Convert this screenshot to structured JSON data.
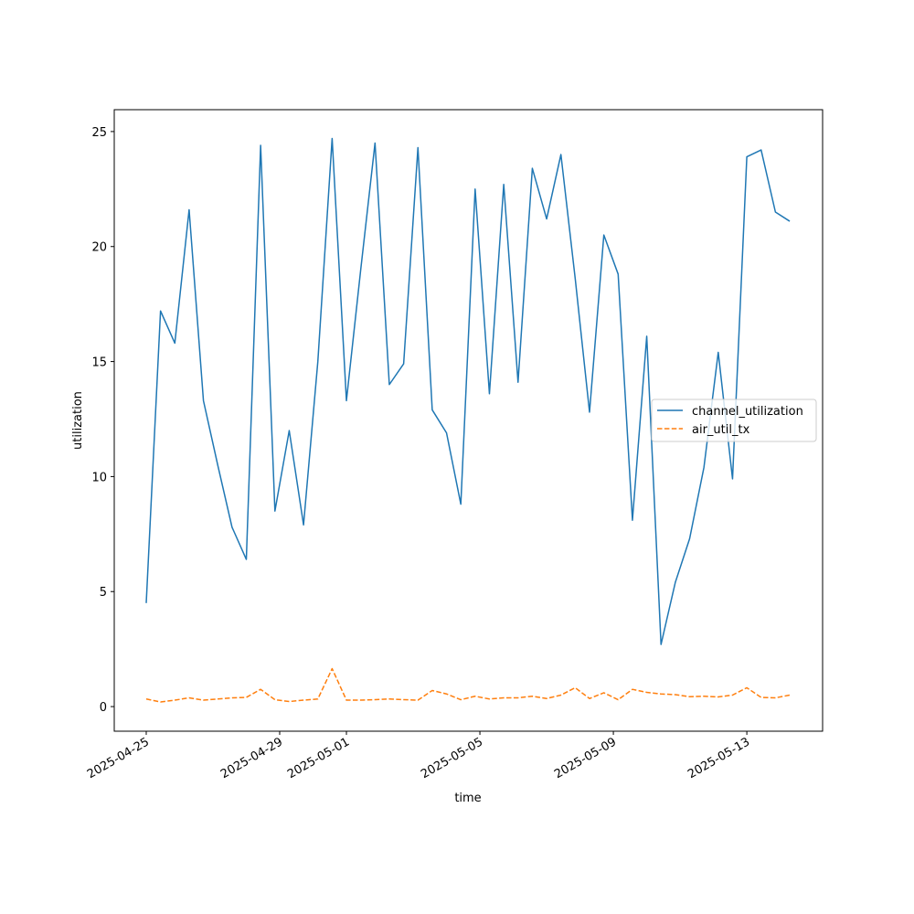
{
  "chart_data": {
    "type": "line",
    "x_label": "time",
    "y_label": "utilization",
    "x": [
      "2025-04-25T00:00",
      "2025-04-25T10:17",
      "2025-04-25T20:34",
      "2025-04-26T06:51",
      "2025-04-26T17:09",
      "2025-04-27T03:26",
      "2025-04-27T13:43",
      "2025-04-28T00:00",
      "2025-04-28T10:17",
      "2025-04-28T20:34",
      "2025-04-29T06:51",
      "2025-04-29T17:09",
      "2025-04-30T03:26",
      "2025-04-30T13:43",
      "2025-05-01T00:00",
      "2025-05-01T10:17",
      "2025-05-01T20:34",
      "2025-05-02T06:51",
      "2025-05-02T17:09",
      "2025-05-03T03:26",
      "2025-05-03T13:43",
      "2025-05-04T00:00",
      "2025-05-04T10:17",
      "2025-05-04T20:34",
      "2025-05-05T06:51",
      "2025-05-05T17:09",
      "2025-05-06T03:26",
      "2025-05-06T13:43",
      "2025-05-07T00:00",
      "2025-05-07T10:17",
      "2025-05-07T20:34",
      "2025-05-08T06:51",
      "2025-05-08T17:09",
      "2025-05-09T03:26",
      "2025-05-09T13:43",
      "2025-05-10T00:00",
      "2025-05-10T10:17",
      "2025-05-10T20:34",
      "2025-05-11T06:51",
      "2025-05-11T17:09",
      "2025-05-12T03:26",
      "2025-05-12T13:43",
      "2025-05-13T00:00",
      "2025-05-13T10:17",
      "2025-05-13T20:34",
      "2025-05-14T06:51"
    ],
    "series": [
      {
        "name": "channel_utilization",
        "color": "#1f77b4",
        "dash": "solid",
        "values": [
          4.5,
          17.2,
          15.8,
          21.6,
          13.3,
          10.5,
          7.8,
          6.4,
          24.4,
          8.5,
          12.0,
          7.9,
          15.0,
          24.7,
          13.3,
          19.0,
          24.5,
          14.0,
          14.9,
          24.3,
          12.9,
          11.9,
          8.8,
          22.5,
          13.6,
          22.7,
          14.1,
          23.4,
          21.2,
          24.0,
          18.6,
          12.8,
          20.5,
          18.8,
          8.1,
          16.1,
          2.7,
          5.4,
          7.3,
          10.4,
          15.4,
          9.9,
          23.9,
          24.2,
          21.5,
          21.1
        ]
      },
      {
        "name": "air_util_tx",
        "color": "#ff7f0e",
        "dash": "dashed",
        "values": [
          0.33,
          0.2,
          0.28,
          0.38,
          0.28,
          0.33,
          0.38,
          0.4,
          0.75,
          0.3,
          0.22,
          0.28,
          0.33,
          1.65,
          0.28,
          0.28,
          0.3,
          0.33,
          0.3,
          0.28,
          0.7,
          0.55,
          0.3,
          0.45,
          0.33,
          0.38,
          0.38,
          0.45,
          0.35,
          0.5,
          0.82,
          0.35,
          0.6,
          0.3,
          0.75,
          0.62,
          0.55,
          0.52,
          0.43,
          0.45,
          0.42,
          0.5,
          0.82,
          0.4,
          0.38,
          0.5
        ]
      }
    ],
    "xlim": [
      "2025-04-24T01:00",
      "2025-05-15T06:30"
    ],
    "xticks": [
      "2025-04-25",
      "2025-04-29",
      "2025-05-01",
      "2025-05-05",
      "2025-05-09",
      "2025-05-13"
    ],
    "ylim": [
      -1.07,
      25.95
    ],
    "yticks": [
      0,
      5,
      10,
      15,
      20,
      25
    ],
    "grid": false,
    "legend": "center right"
  }
}
